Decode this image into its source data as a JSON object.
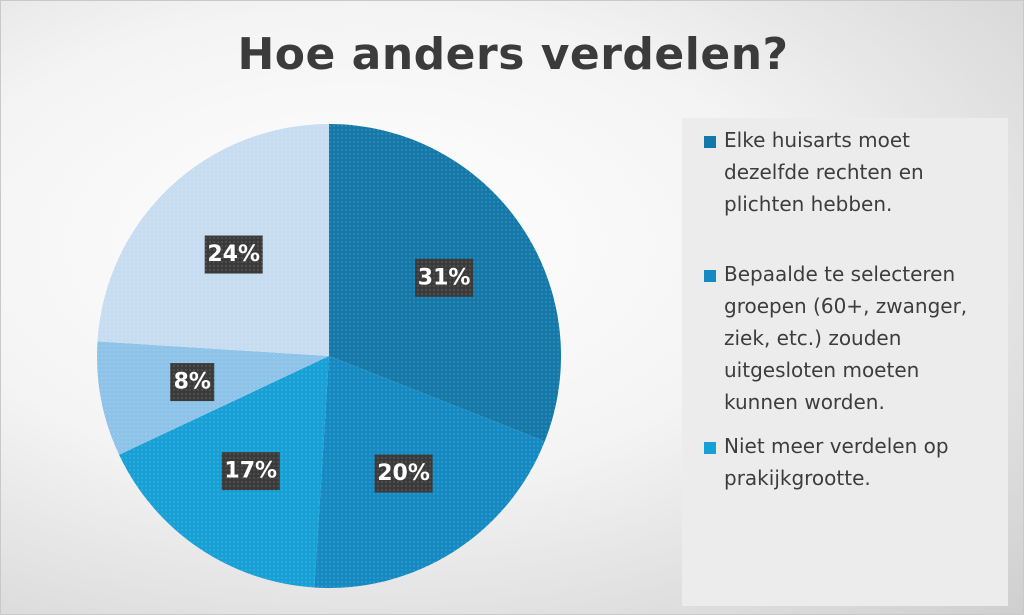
{
  "chart_data": {
    "type": "pie",
    "title": "Hoe anders verdelen?",
    "slices": [
      {
        "label": "Elke huisarts moet dezelfde rechten en plichten hebben.",
        "value": 31,
        "display": "31%",
        "color": "#1479a8",
        "in_legend": true
      },
      {
        "label": "Bepaalde te selecteren groepen (60+, zwanger, ziek, etc.) zouden uitgesloten moeten kunnen worden.",
        "value": 20,
        "display": "20%",
        "color": "#1489c2",
        "in_legend": true
      },
      {
        "label": "Niet meer verdelen op prakijkgrootte.",
        "value": 17,
        "display": "17%",
        "color": "#17a0d6",
        "in_legend": true
      },
      {
        "label": "",
        "value": 8,
        "display": "8%",
        "color": "#8dc3e8",
        "in_legend": false
      },
      {
        "label": "",
        "value": 24,
        "display": "24%",
        "color": "#c6dcf0",
        "in_legend": false
      }
    ],
    "legend_position": "right"
  }
}
